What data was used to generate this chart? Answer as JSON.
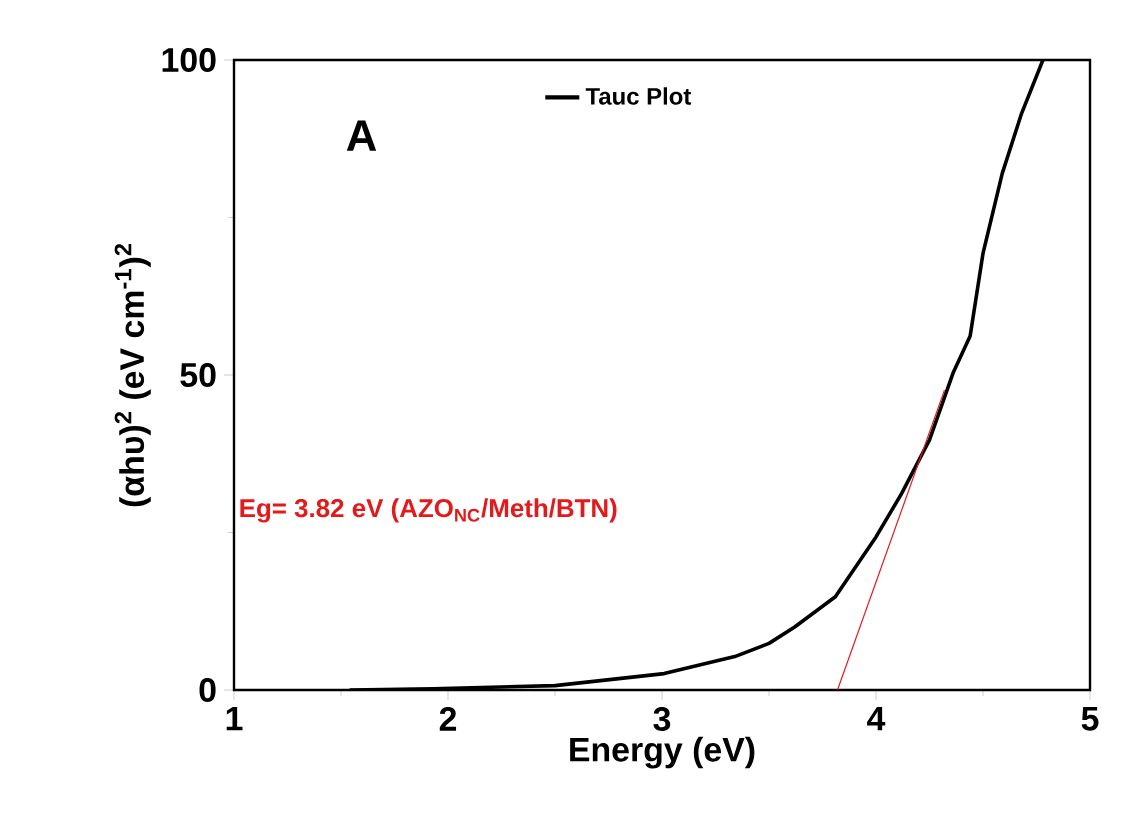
{
  "chart_data": {
    "type": "line",
    "xlabel": "Energy (eV)",
    "ylabel": "(αhυ)$^{2}$ (eV cm$^{-1}$)$^{2}$",
    "xlim": [
      1,
      5
    ],
    "ylim": [
      0,
      100
    ],
    "xticks": [
      1,
      2,
      3,
      4,
      5
    ],
    "yticks": [
      0,
      50,
      100
    ],
    "legend": "top",
    "grid": false,
    "marker": "none",
    "series": [
      {
        "name": "Tauc Plot",
        "color": "#000000",
        "x": [
          1.54,
          1.93,
          2.5,
          3.01,
          3.34,
          3.5,
          3.62,
          3.81,
          4.0,
          4.12,
          4.25,
          4.36,
          4.44,
          4.5,
          4.59,
          4.68,
          4.78
        ],
        "values": [
          0,
          0.2,
          0.7,
          2.6,
          5.3,
          7.4,
          10,
          14.8,
          24.3,
          31.2,
          39.7,
          50.3,
          56.2,
          69.3,
          82,
          91.5,
          100
        ]
      },
      {
        "type": "line",
        "color": "#e31a1c",
        "x": [
          4.32,
          3.82
        ],
        "values": [
          47.6,
          0
        ]
      }
    ],
    "annotations": [
      "A",
      "Eg= 3.82 eV (AZO$_{NC}$/Meth/BTN)"
    ]
  }
}
